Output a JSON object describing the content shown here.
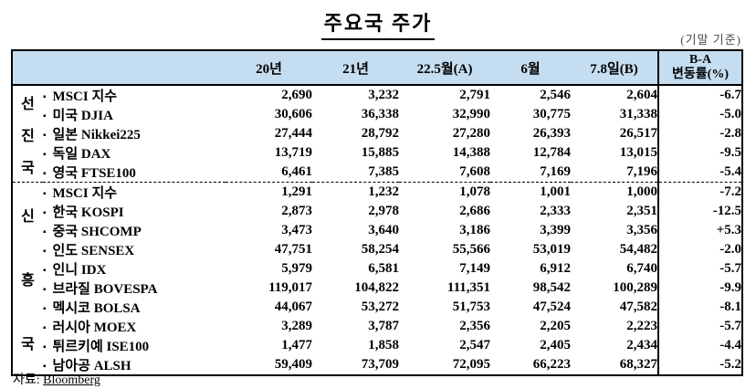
{
  "title": "주요국 주가",
  "note": "(기말 기준)",
  "bullet": "▪",
  "colors": {
    "header_bg": "#c5ddf0",
    "border": "#000000"
  },
  "source": {
    "label": "자료: ",
    "name": "Bloomberg"
  },
  "table": {
    "columns": [
      "20년",
      "21년",
      "22.5월(A)",
      "6월",
      "7.8일(B)"
    ],
    "change_col": {
      "line1": "B-A",
      "line2": "변동률(%)"
    },
    "groups": [
      {
        "label_chars": [
          "선",
          "진",
          "국"
        ],
        "rows": [
          {
            "name": "MSCI 지수",
            "values": [
              "2,690",
              "3,232",
              "2,791",
              "2,546",
              "2,604"
            ],
            "change": "-6.7"
          },
          {
            "name": "미국 DJIA",
            "values": [
              "30,606",
              "36,338",
              "32,990",
              "30,775",
              "31,338"
            ],
            "change": "-5.0"
          },
          {
            "name": "일본 Nikkei225",
            "values": [
              "27,444",
              "28,792",
              "27,280",
              "26,393",
              "26,517"
            ],
            "change": "-2.8"
          },
          {
            "name": "독일 DAX",
            "values": [
              "13,719",
              "15,885",
              "14,388",
              "12,784",
              "13,015"
            ],
            "change": "-9.5"
          },
          {
            "name": "영국 FTSE100",
            "values": [
              "6,461",
              "7,385",
              "7,608",
              "7,169",
              "7,196"
            ],
            "change": "-5.4"
          }
        ]
      },
      {
        "label_chars": [
          "신",
          "흥",
          "국"
        ],
        "rows": [
          {
            "name": "MSCI 지수",
            "values": [
              "1,291",
              "1,232",
              "1,078",
              "1,001",
              "1,000"
            ],
            "change": "-7.2"
          },
          {
            "name": "한국 KOSPI",
            "values": [
              "2,873",
              "2,978",
              "2,686",
              "2,333",
              "2,351"
            ],
            "change": "-12.5"
          },
          {
            "name": "중국 SHCOMP",
            "values": [
              "3,473",
              "3,640",
              "3,186",
              "3,399",
              "3,356"
            ],
            "change": "+5.3"
          },
          {
            "name": "인도 SENSEX",
            "values": [
              "47,751",
              "58,254",
              "55,566",
              "53,019",
              "54,482"
            ],
            "change": "-2.0"
          },
          {
            "name": "인니 IDX",
            "values": [
              "5,979",
              "6,581",
              "7,149",
              "6,912",
              "6,740"
            ],
            "change": "-5.7"
          },
          {
            "name": "브라질 BOVESPA",
            "values": [
              "119,017",
              "104,822",
              "111,351",
              "98,542",
              "100,289"
            ],
            "change": "-9.9"
          },
          {
            "name": "멕시코 BOLSA",
            "values": [
              "44,067",
              "53,272",
              "51,753",
              "47,524",
              "47,582"
            ],
            "change": "-8.1"
          },
          {
            "name": "러시아 MOEX",
            "values": [
              "3,289",
              "3,787",
              "2,356",
              "2,205",
              "2,223"
            ],
            "change": "-5.7"
          },
          {
            "name": "튀르키예 ISE100",
            "values": [
              "1,477",
              "1,858",
              "2,547",
              "2,405",
              "2,434"
            ],
            "change": "-4.4"
          },
          {
            "name": "남아공 ALSH",
            "values": [
              "59,409",
              "73,709",
              "72,095",
              "66,223",
              "68,327"
            ],
            "change": "-5.2"
          }
        ]
      }
    ]
  }
}
